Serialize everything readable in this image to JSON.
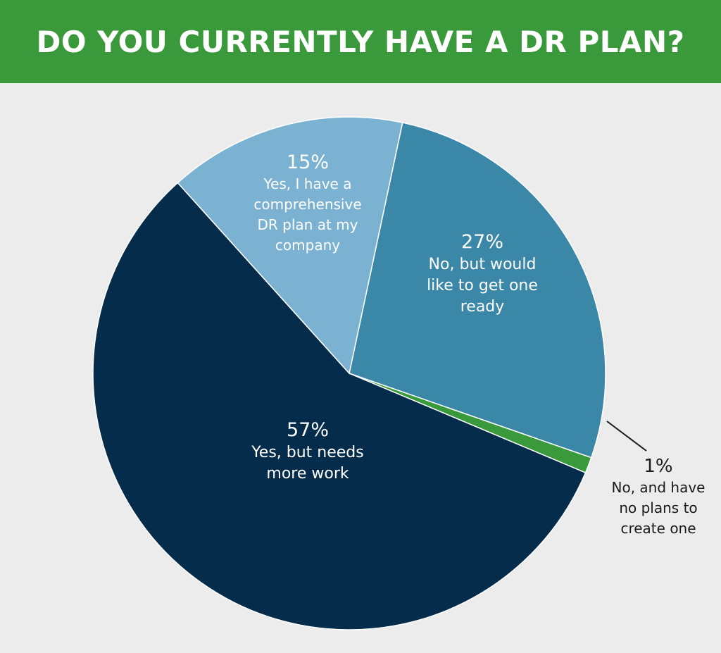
{
  "chart_data": {
    "type": "pie",
    "title": "DO YOU CURRENTLY HAVE A DR PLAN?",
    "slices": [
      {
        "label": "No, but would like to get one ready",
        "value": 27,
        "value_label": "27%",
        "lines": [
          "No, but would",
          "like to get one",
          "ready"
        ],
        "color": "#3a87a8"
      },
      {
        "label": "No, and have no plans to create one",
        "value": 1,
        "value_label": "1%",
        "lines": [
          "No, and have",
          "no plans to",
          "create one"
        ],
        "color": "#3a9a3b"
      },
      {
        "label": "Yes, but needs more work",
        "value": 57,
        "value_label": "57%",
        "lines": [
          "Yes, but needs",
          "more work"
        ],
        "color": "#052c4a"
      },
      {
        "label": "Yes, I have a comprehensive DR plan at my company",
        "value": 15,
        "value_label": "15%",
        "lines": [
          "Yes, I have a",
          "comprehensive",
          "DR plan at my",
          "company"
        ],
        "color": "#7cb2d1"
      }
    ]
  }
}
